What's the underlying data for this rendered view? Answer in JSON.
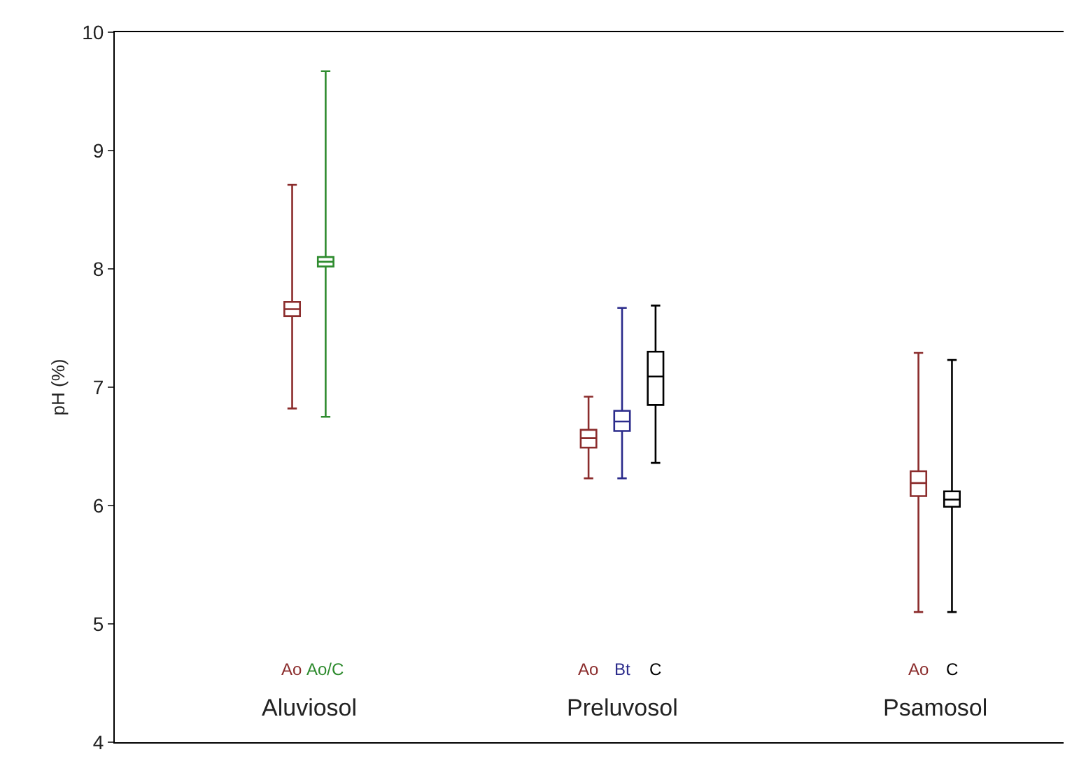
{
  "chart_data": {
    "type": "box",
    "ylabel": "pH (%)",
    "categories": [
      "Aluviosol",
      "Preluvosol",
      "Psamosol"
    ],
    "series": [
      {
        "name": "Ao",
        "color": "#8b2c2c",
        "boxes": [
          {
            "low": 6.82,
            "q1": 7.6,
            "median": 7.66,
            "q3": 7.72,
            "high": 8.71
          },
          {
            "low": 6.23,
            "q1": 6.49,
            "median": 6.57,
            "q3": 6.64,
            "high": 6.92
          },
          {
            "low": 5.1,
            "q1": 6.08,
            "median": 6.19,
            "q3": 6.29,
            "high": 7.29
          }
        ]
      },
      {
        "name": "Ao/C",
        "color": "#2e8b2e",
        "boxes": [
          {
            "low": 6.75,
            "q1": 8.02,
            "median": 8.06,
            "q3": 8.1,
            "high": 9.67
          },
          null,
          null
        ]
      },
      {
        "name": "Bt",
        "color": "#2b2b8b",
        "boxes": [
          null,
          {
            "low": 6.23,
            "q1": 6.63,
            "median": 6.71,
            "q3": 6.8,
            "high": 7.67
          },
          null
        ]
      },
      {
        "name": "C",
        "color": "#000000",
        "boxes": [
          null,
          {
            "low": 6.36,
            "q1": 6.85,
            "median": 7.09,
            "q3": 7.3,
            "high": 7.69
          },
          {
            "low": 5.1,
            "q1": 5.99,
            "median": 6.05,
            "q3": 6.12,
            "high": 7.23
          }
        ]
      }
    ],
    "ylim": [
      4,
      10
    ],
    "yticks": [
      4,
      5,
      6,
      7,
      8,
      9,
      10
    ],
    "grid": false,
    "legend": false
  }
}
